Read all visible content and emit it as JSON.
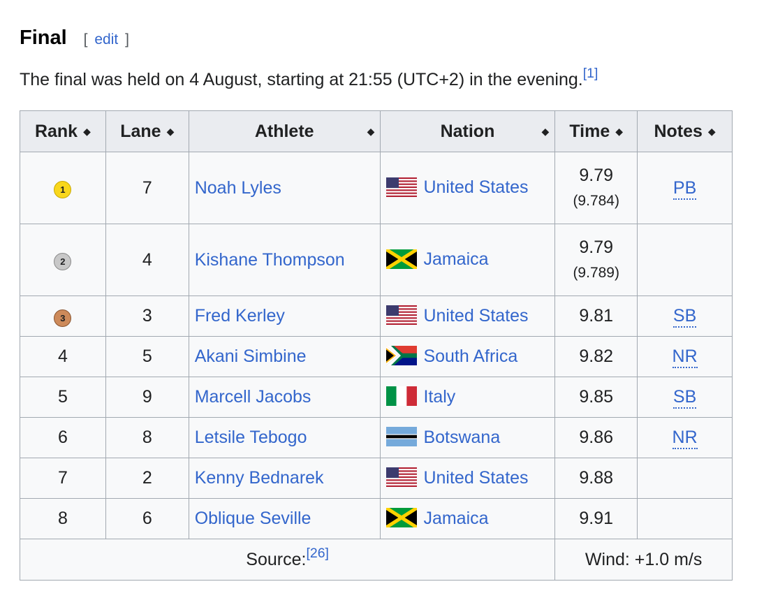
{
  "section": {
    "title": "Final",
    "edit_open": "[",
    "edit_label": "edit",
    "edit_close": "]"
  },
  "intro": {
    "text": "The final was held on 4 August, starting at 21:55 (UTC+2) in the evening.",
    "ref": "[1]"
  },
  "table": {
    "headers": [
      "Rank",
      "Lane",
      "Athlete",
      "Nation",
      "Time",
      "Notes"
    ],
    "sort_icon": "sort-icon",
    "rows": [
      {
        "rank": "1",
        "medal": "gold",
        "lane": "7",
        "athlete": "Noah Lyles",
        "flag": "us-flag-icon",
        "nation": "United States",
        "time": "9.79",
        "time_detail": "(9.784)",
        "note": "PB"
      },
      {
        "rank": "2",
        "medal": "silver",
        "lane": "4",
        "athlete": "Kishane Thompson",
        "flag": "jamaica-flag-icon",
        "nation": "Jamaica",
        "time": "9.79",
        "time_detail": "(9.789)",
        "note": ""
      },
      {
        "rank": "3",
        "medal": "bronze",
        "lane": "3",
        "athlete": "Fred Kerley",
        "flag": "us-flag-icon",
        "nation": "United States",
        "time": "9.81",
        "time_detail": "",
        "note": "SB"
      },
      {
        "rank": "4",
        "medal": "",
        "lane": "5",
        "athlete": "Akani Simbine",
        "flag": "south-africa-flag-icon",
        "nation": "South Africa",
        "time": "9.82",
        "time_detail": "",
        "note": "NR"
      },
      {
        "rank": "5",
        "medal": "",
        "lane": "9",
        "athlete": "Marcell Jacobs",
        "flag": "italy-flag-icon",
        "nation": "Italy",
        "time": "9.85",
        "time_detail": "",
        "note": "SB"
      },
      {
        "rank": "6",
        "medal": "",
        "lane": "8",
        "athlete": "Letsile Tebogo",
        "flag": "botswana-flag-icon",
        "nation": "Botswana",
        "time": "9.86",
        "time_detail": "",
        "note": "NR"
      },
      {
        "rank": "7",
        "medal": "",
        "lane": "2",
        "athlete": "Kenny Bednarek",
        "flag": "us-flag-icon",
        "nation": "United States",
        "time": "9.88",
        "time_detail": "",
        "note": ""
      },
      {
        "rank": "8",
        "medal": "",
        "lane": "6",
        "athlete": "Oblique Seville",
        "flag": "jamaica-flag-icon",
        "nation": "Jamaica",
        "time": "9.91",
        "time_detail": "",
        "note": ""
      }
    ],
    "footer": {
      "source_label": "Source:",
      "source_ref": "[26]",
      "wind": "Wind: +1.0 m/s"
    }
  },
  "colors": {
    "link": "#3366cc",
    "header_bg": "#eaecf0",
    "cell_bg": "#f8f9fa",
    "border": "#a2a9b1",
    "gold": "#f9d71c",
    "silver": "#c8c8c8",
    "bronze": "#cd8a5a"
  }
}
